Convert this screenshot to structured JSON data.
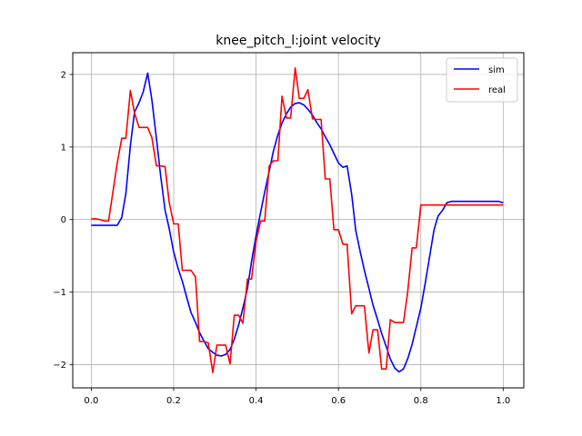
{
  "chart_data": {
    "type": "line",
    "title": "knee_pitch_l:joint velocity",
    "xlabel": "",
    "ylabel": "",
    "xlim": [
      -0.045,
      1.05
    ],
    "ylim": [
      -2.32,
      2.3
    ],
    "grid": true,
    "legend_position": "upper-right",
    "x_ticks": [
      0.0,
      0.2,
      0.4,
      0.6,
      0.8,
      1.0
    ],
    "x_tick_labels": [
      "0.0",
      "0.2",
      "0.4",
      "0.6",
      "0.8",
      "1.0"
    ],
    "y_ticks": [
      -2,
      -1,
      0,
      1,
      2
    ],
    "y_tick_labels": [
      "−2",
      "−1",
      "0",
      "1",
      "2"
    ],
    "series": [
      {
        "name": "sim",
        "color": "#0000ff",
        "x": [
          0.0,
          0.011,
          0.021,
          0.032,
          0.042,
          0.053,
          0.063,
          0.074,
          0.084,
          0.095,
          0.105,
          0.116,
          0.126,
          0.137,
          0.147,
          0.158,
          0.168,
          0.179,
          0.189,
          0.2,
          0.211,
          0.221,
          0.232,
          0.242,
          0.253,
          0.263,
          0.274,
          0.284,
          0.295,
          0.305,
          0.316,
          0.326,
          0.337,
          0.347,
          0.358,
          0.368,
          0.379,
          0.389,
          0.4,
          0.411,
          0.421,
          0.432,
          0.442,
          0.453,
          0.463,
          0.474,
          0.484,
          0.495,
          0.505,
          0.516,
          0.526,
          0.537,
          0.547,
          0.558,
          0.568,
          0.579,
          0.589,
          0.6,
          0.611,
          0.621,
          0.632,
          0.642,
          0.653,
          0.663,
          0.674,
          0.684,
          0.695,
          0.705,
          0.716,
          0.726,
          0.737,
          0.747,
          0.758,
          0.768,
          0.779,
          0.789,
          0.8,
          0.811,
          0.821,
          0.832,
          0.842,
          0.853,
          0.863,
          0.874,
          0.884,
          0.895,
          0.905,
          0.916,
          0.926,
          0.937,
          0.947,
          0.958,
          0.968,
          0.979,
          0.989,
          1.0
        ],
        "values": [
          -0.08,
          -0.08,
          -0.08,
          -0.08,
          -0.08,
          -0.08,
          -0.08,
          0.03,
          0.36,
          1.02,
          1.48,
          1.61,
          1.76,
          2.02,
          1.65,
          1.12,
          0.62,
          0.13,
          -0.12,
          -0.45,
          -0.68,
          -0.85,
          -1.08,
          -1.28,
          -1.42,
          -1.56,
          -1.68,
          -1.78,
          -1.83,
          -1.87,
          -1.88,
          -1.86,
          -1.79,
          -1.65,
          -1.45,
          -1.22,
          -0.95,
          -0.58,
          -0.22,
          0.1,
          0.38,
          0.67,
          0.94,
          1.17,
          1.33,
          1.46,
          1.55,
          1.6,
          1.61,
          1.58,
          1.52,
          1.44,
          1.34,
          1.25,
          1.14,
          1.03,
          0.91,
          0.78,
          0.72,
          0.74,
          0.35,
          -0.15,
          -0.45,
          -0.7,
          -0.95,
          -1.18,
          -1.38,
          -1.57,
          -1.75,
          -1.92,
          -2.05,
          -2.1,
          -2.06,
          -1.92,
          -1.72,
          -1.48,
          -1.22,
          -0.87,
          -0.52,
          -0.14,
          0.05,
          0.13,
          0.23,
          0.25,
          0.25,
          0.25,
          0.25,
          0.25,
          0.25,
          0.25,
          0.25,
          0.25,
          0.25,
          0.25,
          0.25,
          0.23
        ]
      },
      {
        "name": "real",
        "color": "#ff0000",
        "x": [
          0.0,
          0.011,
          0.021,
          0.032,
          0.042,
          0.053,
          0.063,
          0.074,
          0.084,
          0.095,
          0.105,
          0.116,
          0.126,
          0.137,
          0.147,
          0.158,
          0.168,
          0.179,
          0.189,
          0.2,
          0.211,
          0.221,
          0.232,
          0.242,
          0.253,
          0.263,
          0.274,
          0.284,
          0.295,
          0.305,
          0.316,
          0.326,
          0.337,
          0.347,
          0.358,
          0.368,
          0.379,
          0.389,
          0.4,
          0.411,
          0.421,
          0.432,
          0.442,
          0.453,
          0.463,
          0.474,
          0.484,
          0.495,
          0.505,
          0.516,
          0.526,
          0.537,
          0.547,
          0.558,
          0.568,
          0.579,
          0.589,
          0.6,
          0.611,
          0.621,
          0.632,
          0.642,
          0.653,
          0.663,
          0.674,
          0.684,
          0.695,
          0.705,
          0.716,
          0.726,
          0.737,
          0.747,
          0.758,
          0.768,
          0.779,
          0.789,
          0.8,
          0.811,
          0.821,
          0.832,
          0.842,
          0.853,
          0.863,
          0.874,
          0.884,
          0.895,
          0.905,
          0.916,
          0.926,
          0.937,
          0.947,
          0.958,
          0.968,
          0.979,
          0.989,
          1.0
        ],
        "values": [
          0.01,
          0.01,
          0.0,
          -0.02,
          -0.02,
          0.4,
          0.78,
          1.12,
          1.12,
          1.78,
          1.47,
          1.27,
          1.27,
          1.27,
          1.13,
          0.74,
          0.74,
          0.73,
          0.24,
          -0.06,
          -0.06,
          -0.7,
          -0.7,
          -0.7,
          -0.79,
          -1.68,
          -1.68,
          -1.7,
          -2.11,
          -1.73,
          -1.73,
          -1.73,
          -1.99,
          -1.32,
          -1.32,
          -1.43,
          -0.82,
          -0.82,
          -0.3,
          -0.02,
          -0.02,
          0.74,
          0.81,
          0.81,
          1.7,
          1.4,
          1.4,
          2.09,
          1.67,
          1.67,
          1.79,
          1.39,
          1.38,
          1.38,
          0.56,
          0.56,
          -0.14,
          -0.14,
          -0.34,
          -0.34,
          -1.3,
          -1.19,
          -1.19,
          -1.19,
          -1.84,
          -1.52,
          -1.52,
          -2.06,
          -2.06,
          -1.38,
          -1.42,
          -1.42,
          -1.42,
          -1.0,
          -0.39,
          -0.39,
          0.2,
          0.2,
          0.2,
          0.2,
          0.2,
          0.2,
          0.2,
          0.2,
          0.2,
          0.2,
          0.2,
          0.2,
          0.2,
          0.2,
          0.2,
          0.2,
          0.2,
          0.2,
          0.2,
          0.2
        ]
      }
    ]
  }
}
